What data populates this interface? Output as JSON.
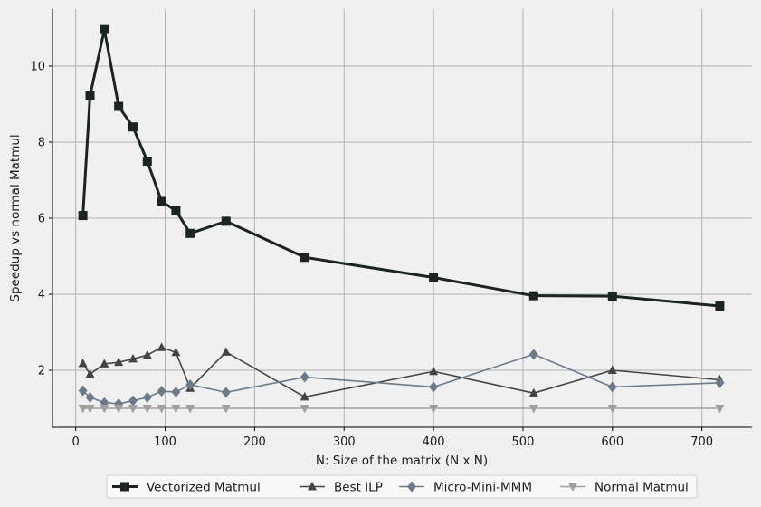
{
  "chart_data": {
    "type": "line",
    "title": "",
    "xlabel": "N: Size of the matrix (N x N)",
    "ylabel": "Speedup vs normal Matmul",
    "xlim": [
      -26,
      756
    ],
    "ylim": [
      0.5,
      11.5
    ],
    "xticks": [
      0,
      100,
      200,
      300,
      400,
      500,
      600,
      700
    ],
    "yticks": [
      2,
      4,
      6,
      8,
      10
    ],
    "grid": true,
    "legend_position": "bottom-center",
    "series": [
      {
        "name": "Vectorized Matmul",
        "color": "#1c2421",
        "marker": "square",
        "line_width": 3,
        "x": [
          8,
          16,
          32,
          48,
          64,
          80,
          96,
          112,
          128,
          168,
          256,
          400,
          512,
          600,
          720
        ],
        "y": [
          6.07,
          9.22,
          10.96,
          8.94,
          8.4,
          7.5,
          6.44,
          6.2,
          5.6,
          5.92,
          4.97,
          4.44,
          3.96,
          3.95,
          3.69
        ]
      },
      {
        "name": "Best ILP",
        "color": "#444444",
        "marker": "triangle-up",
        "line_width": 1.6,
        "x": [
          8,
          16,
          32,
          48,
          64,
          80,
          96,
          112,
          128,
          168,
          256,
          400,
          512,
          600,
          720
        ],
        "y": [
          2.18,
          1.9,
          2.17,
          2.21,
          2.3,
          2.4,
          2.6,
          2.47,
          1.53,
          2.48,
          1.3,
          1.97,
          1.4,
          2.0,
          1.75
        ]
      },
      {
        "name": "Micro-Mini-MMM",
        "color": "#6e7a8a",
        "marker": "diamond",
        "line_width": 1.6,
        "x": [
          8,
          16,
          32,
          48,
          64,
          80,
          96,
          112,
          128,
          168,
          256,
          400,
          512,
          600,
          720
        ],
        "y": [
          1.46,
          1.29,
          1.15,
          1.12,
          1.2,
          1.29,
          1.45,
          1.43,
          1.62,
          1.42,
          1.82,
          1.56,
          2.42,
          1.56,
          1.67
        ]
      },
      {
        "name": "Normal Matmul",
        "color": "#a0a0a0",
        "marker": "triangle-down",
        "line_width": 1.6,
        "x": [
          8,
          16,
          32,
          48,
          64,
          80,
          96,
          112,
          128,
          168,
          256,
          400,
          512,
          600,
          720
        ],
        "y": [
          1,
          1,
          1,
          1,
          1,
          1,
          1,
          1,
          1,
          1,
          1,
          1,
          1,
          1,
          1
        ]
      }
    ]
  }
}
